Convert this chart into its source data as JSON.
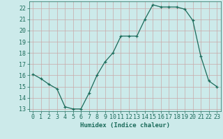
{
  "x": [
    0,
    1,
    2,
    3,
    4,
    5,
    6,
    7,
    8,
    9,
    10,
    11,
    12,
    13,
    14,
    15,
    16,
    17,
    18,
    19,
    20,
    21,
    22,
    23
  ],
  "y": [
    16.1,
    15.7,
    15.2,
    14.8,
    13.2,
    13.0,
    13.0,
    14.4,
    16.0,
    17.2,
    18.0,
    19.5,
    19.5,
    19.5,
    21.0,
    22.3,
    22.1,
    22.1,
    22.1,
    21.9,
    20.9,
    17.7,
    15.5,
    15.0
  ],
  "xlabel": "Humidex (Indice chaleur)",
  "xlim": [
    -0.5,
    23.5
  ],
  "ylim": [
    12.8,
    22.6
  ],
  "yticks": [
    13,
    14,
    15,
    16,
    17,
    18,
    19,
    20,
    21,
    22
  ],
  "xticks": [
    0,
    1,
    2,
    3,
    4,
    5,
    6,
    7,
    8,
    9,
    10,
    11,
    12,
    13,
    14,
    15,
    16,
    17,
    18,
    19,
    20,
    21,
    22,
    23
  ],
  "line_color": "#1a6b5a",
  "marker": "+",
  "bg_color": "#cceaea",
  "grid_color": "#b8d8d8",
  "xlabel_fontsize": 6.5,
  "tick_fontsize": 6,
  "linewidth": 0.9,
  "markersize": 3.5,
  "markeredgewidth": 0.9
}
